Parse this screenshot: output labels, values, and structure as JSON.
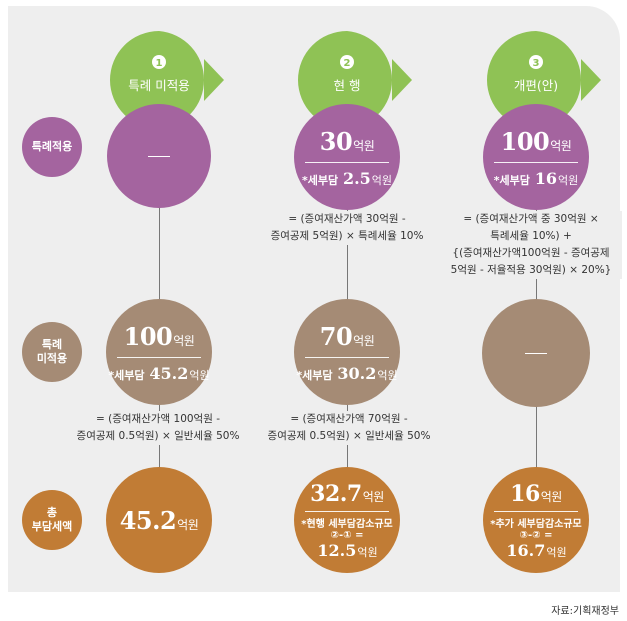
{
  "colors": {
    "header_green": "#8fc255",
    "purple": "#a4649f",
    "brown": "#a58b75",
    "orange": "#c17c35",
    "panel": "#eeeeee"
  },
  "columns": [
    {
      "num": "1",
      "label": "특례 미적용"
    },
    {
      "num": "2",
      "label": "현 행"
    },
    {
      "num": "3",
      "label": "개편(안)"
    }
  ],
  "rows": [
    {
      "line1": "특례적용",
      "line2": ""
    },
    {
      "line1": "특례",
      "line2": "미적용"
    },
    {
      "line1": "총",
      "line2": "부담세액"
    }
  ],
  "cells": {
    "r1c1": {
      "dash": "—"
    },
    "r1c2": {
      "amount": "30",
      "unit": "억원",
      "tax_label": "*세부담",
      "tax_value": "2.5",
      "tax_unit": "억원"
    },
    "r1c3": {
      "amount": "100",
      "unit": "억원",
      "tax_label": "*세부담",
      "tax_value": "16",
      "tax_unit": "억원"
    },
    "r2c1": {
      "amount": "100",
      "unit": "억원",
      "tax_label": "*세부담",
      "tax_value": "45.2",
      "tax_unit": "억원"
    },
    "r2c2": {
      "amount": "70",
      "unit": "억원",
      "tax_label": "*세부담",
      "tax_value": "30.2",
      "tax_unit": "억원"
    },
    "r2c3": {
      "dash": "—"
    },
    "r3c1": {
      "amount": "45.2",
      "unit": "억원"
    },
    "r3c2": {
      "amount": "32.7",
      "unit": "억원",
      "note1": "*현행 세부담감소규모",
      "note2": "②-① =",
      "value": "12.5",
      "value_unit": "억원"
    },
    "r3c3": {
      "amount": "16",
      "unit": "억원",
      "note1": "*추가 세부담감소규모",
      "note2": "③-② =",
      "value": "16.7",
      "value_unit": "억원"
    }
  },
  "formulas": {
    "f1c2": [
      "= (증여재산가액 30억원 -",
      "증여공제 5억원) × 특례세율 10%"
    ],
    "f1c3": [
      "= (증여재산가액 중 30억원 ×",
      "특례세율 10%) +",
      "{(증여재산가액100억원 - 증여공제",
      "5억원 - 저율적용 30억원) × 20%}"
    ],
    "f2c1": [
      "= (증여재산가액 100억원 -",
      "증여공제 0.5억원) × 일반세율 50%"
    ],
    "f2c2": [
      "= (증여재산가액 70억원 -",
      "증여공제 0.5억원) × 일반세율 50%"
    ]
  },
  "source": "자료:기획재정부"
}
